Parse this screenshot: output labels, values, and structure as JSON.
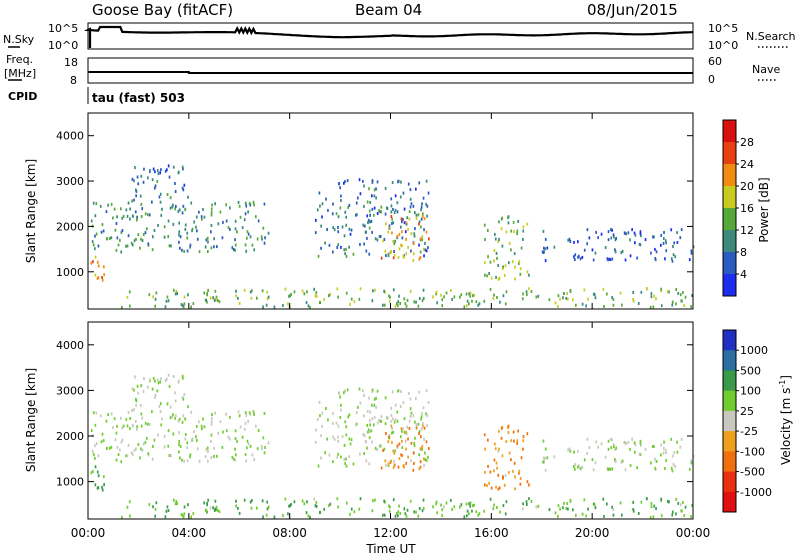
{
  "header": {
    "station": "Goose Bay (fitACF)",
    "beam": "Beam 04",
    "date": "08/Jun/2015"
  },
  "noise_panel": {
    "left_label": "N.Sky",
    "right_label": "N.Search",
    "left_ticks": [
      "10^5",
      "10^0"
    ],
    "right_ticks": [
      "10^5",
      "10^0"
    ]
  },
  "freq_panel": {
    "left_label_1": "Freq.",
    "left_label_2": "[MHz]",
    "right_label": "Nave",
    "left_ticks": [
      "18",
      "8"
    ],
    "right_ticks": [
      "60",
      "0"
    ]
  },
  "cpid": {
    "label": "CPID",
    "mode": "tau (fast) 503"
  },
  "axes": {
    "ylabel": "Slant Range [km]",
    "yticks": [
      "1000",
      "2000",
      "3000",
      "4000"
    ],
    "xticks": [
      "00:00",
      "04:00",
      "08:00",
      "12:00",
      "16:00",
      "20:00",
      "00:00"
    ],
    "xlabel": "Time UT"
  },
  "power_scale": {
    "title": "Power [dB]",
    "ticks": [
      "4",
      "8",
      "12",
      "16",
      "20",
      "24",
      "28"
    ],
    "colors": [
      "#1d2df0",
      "#2a5cc0",
      "#3b8a7a",
      "#56a83a",
      "#c8cc20",
      "#f08c10",
      "#e84010",
      "#d81010"
    ]
  },
  "velocity_scale": {
    "title": "Velocity [m s^-1]",
    "ticks": [
      "1000",
      "500",
      "100",
      "25",
      "-25",
      "-100",
      "-500",
      "-1000"
    ],
    "colors": [
      "#2030c0",
      "#2a6fa0",
      "#3a9a4a",
      "#70cc30",
      "#c8c8c0",
      "#f0a020",
      "#f07010",
      "#e83010",
      "#e01010"
    ]
  },
  "chart_data": {
    "type": "heatmap",
    "title": "Goose Bay (fitACF) Beam 04 08/Jun/2015",
    "xlabel": "Time UT",
    "ylabel": "Slant Range [km]",
    "xlim": [
      0,
      24
    ],
    "ylim": [
      180,
      4500
    ],
    "panels": [
      "Power [dB]",
      "Velocity [m s^-1]"
    ],
    "features": [
      {
        "t": [
          0.0,
          0.8
        ],
        "range": [
          650,
          1300
        ],
        "power_db": 22,
        "velocity": 100
      },
      {
        "t": [
          0.1,
          7.2
        ],
        "range": [
          1400,
          2500
        ],
        "power_db": 10,
        "velocity": 25
      },
      {
        "t": [
          1.5,
          4.0
        ],
        "range": [
          2500,
          3300
        ],
        "power_db": 8,
        "velocity": 25
      },
      {
        "t": [
          1.2,
          7.0
        ],
        "range": [
          180,
          560
        ],
        "power_db": 14,
        "velocity": 100
      },
      {
        "t": [
          9.0,
          13.5
        ],
        "range": [
          1300,
          3000
        ],
        "power_db": 8,
        "velocity": 25
      },
      {
        "t": [
          11.5,
          13.5
        ],
        "range": [
          1200,
          2200
        ],
        "power_db": 20,
        "velocity": -100
      },
      {
        "t": [
          15.7,
          17.5
        ],
        "range": [
          800,
          2200
        ],
        "power_db": 14,
        "velocity": -100
      },
      {
        "t": [
          18.0,
          24.0
        ],
        "range": [
          1200,
          1900
        ],
        "power_db": 6,
        "velocity": 25
      },
      {
        "t": [
          7.0,
          24.0
        ],
        "range": [
          180,
          600
        ],
        "power_db": 14,
        "velocity": 100
      }
    ]
  }
}
